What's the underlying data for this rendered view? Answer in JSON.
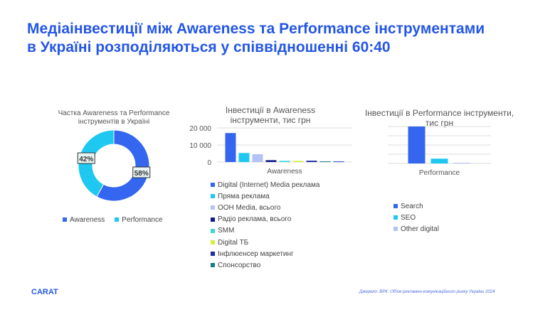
{
  "title": {
    "line1": "Медіаінвестиції між Awareness та Performance інструментами",
    "line2": "в Україні розподіляються у співвідношенні 60:40"
  },
  "chart_data": [
    {
      "type": "pie",
      "title": "Частка Awareness та Performance інструментів в Україні",
      "categories": [
        "Awareness",
        "Performance"
      ],
      "values": [
        58,
        42
      ],
      "labels": [
        "58%",
        "42%"
      ],
      "colors": [
        "#3566f0",
        "#1ec8f0"
      ],
      "legend": "bottom"
    },
    {
      "type": "bar",
      "title": "Інвестиції в Awareness інструменти, тис грн",
      "categories": [
        "Awareness"
      ],
      "ylim": [
        0,
        20000
      ],
      "yticks": [
        "0",
        "10 000",
        "20 000"
      ],
      "grid": true,
      "legend": "bottom",
      "series": [
        {
          "name": "Digital (Internet) Media реклама",
          "values": [
            17000
          ],
          "color": "#3566f0"
        },
        {
          "name": "Пряма реклама",
          "values": [
            5300
          ],
          "color": "#1ec8f0"
        },
        {
          "name": "OOH Media, всього",
          "values": [
            4600
          ],
          "color": "#b4c3f5"
        },
        {
          "name": "Радіо реклама, всього",
          "values": [
            1100
          ],
          "color": "#0e1a8a"
        },
        {
          "name": "SMM",
          "values": [
            700
          ],
          "color": "#3ad9d9"
        },
        {
          "name": "Digital ТБ",
          "values": [
            700
          ],
          "color": "#d8ef3c"
        },
        {
          "name": "Інфлюенсер маркетинг",
          "values": [
            800
          ],
          "color": "#1d2f9e"
        },
        {
          "name": "Спонсорство",
          "values": [
            400
          ],
          "color": "#1a7a8a"
        },
        {
          "name": "",
          "values": [
            400
          ],
          "color": "#2a4fc0"
        }
      ]
    },
    {
      "type": "bar",
      "title": "Інвестиції в Performance інструменти, тис грн",
      "categories": [
        "Performance"
      ],
      "ylim": [
        0,
        100
      ],
      "grid": true,
      "legend": "bottom",
      "series": [
        {
          "name": "Search",
          "values": [
            100
          ],
          "color": "#3566f0"
        },
        {
          "name": "SEO",
          "values": [
            13
          ],
          "color": "#1ec8f0"
        },
        {
          "name": "Other digital",
          "values": [
            2
          ],
          "color": "#b4c3f5"
        }
      ]
    }
  ],
  "footer": {
    "logo": "CARAT",
    "source": "Джерело: ВРК. Об'єм рекламно-комунікаційного ринку України 2024"
  }
}
